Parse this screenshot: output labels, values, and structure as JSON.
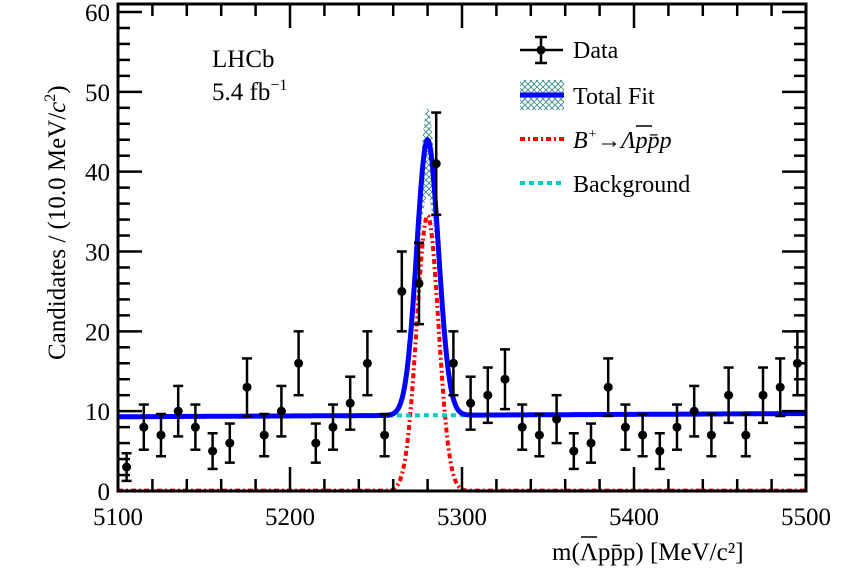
{
  "chart_data": {
    "type": "scatter",
    "title": "",
    "xlabel": "m(Λpp̄p) [MeV/c²]",
    "xlabel_parts": {
      "m": "m(",
      "lambda": "Λ",
      "p1": "p",
      "pbar": "p",
      "p2": "p",
      "close": ")",
      "units": " [MeV/c",
      "sup": "2",
      "end": "]"
    },
    "ylabel": "Candidates / (10.0 MeV/c²)",
    "ylabel_parts": {
      "main": "Candidates / (10.0 MeV/",
      "c": "c",
      "sup": "2",
      "end": ")"
    },
    "xlim": [
      5100,
      5500
    ],
    "ylim": [
      0,
      60
    ],
    "x_ticks": [
      5100,
      5200,
      5300,
      5400,
      5500
    ],
    "y_ticks": [
      0,
      10,
      20,
      30,
      40,
      50,
      60
    ],
    "grid": false,
    "legend_placement": "top-right",
    "annotations": {
      "experiment": "LHCb",
      "lumi": "5.4 fb",
      "lumi_sup": "−1"
    },
    "legend": {
      "data": "Data",
      "total_fit": "Total Fit",
      "signal": {
        "B": "B",
        "sup": "+",
        "arrow": "→",
        "rest": "Λpp̄p"
      },
      "background": "Background"
    },
    "colors": {
      "data": "#000000",
      "total_fit": "#0000ff",
      "band": "#3a8a8a",
      "signal": "#ff0000",
      "background": "#00cccc"
    },
    "series": [
      {
        "name": "Data",
        "x": [
          5105,
          5115,
          5125,
          5135,
          5145,
          5155,
          5165,
          5175,
          5185,
          5195,
          5205,
          5215,
          5225,
          5235,
          5245,
          5255,
          5265,
          5275,
          5285,
          5295,
          5305,
          5315,
          5325,
          5335,
          5345,
          5355,
          5365,
          5375,
          5385,
          5395,
          5405,
          5415,
          5425,
          5435,
          5445,
          5455,
          5465,
          5475,
          5485,
          5495
        ],
        "y": [
          3,
          8,
          7,
          10,
          8,
          5,
          6,
          13,
          7,
          10,
          16,
          6,
          8,
          11,
          16,
          7,
          25,
          26,
          41,
          16,
          11,
          12,
          14,
          8,
          7,
          9,
          5,
          6,
          13,
          8,
          7,
          5,
          8,
          10,
          7,
          12,
          7,
          12,
          13,
          16
        ]
      }
    ],
    "fit_model": {
      "background": {
        "x": [
          5100,
          5500
        ],
        "y": [
          9.3,
          9.7
        ]
      },
      "signal": {
        "mean": 5280,
        "sigma": 6.3,
        "peak": 34.5
      },
      "band_peak_upper": 48,
      "band_peak_lower": 37
    }
  }
}
